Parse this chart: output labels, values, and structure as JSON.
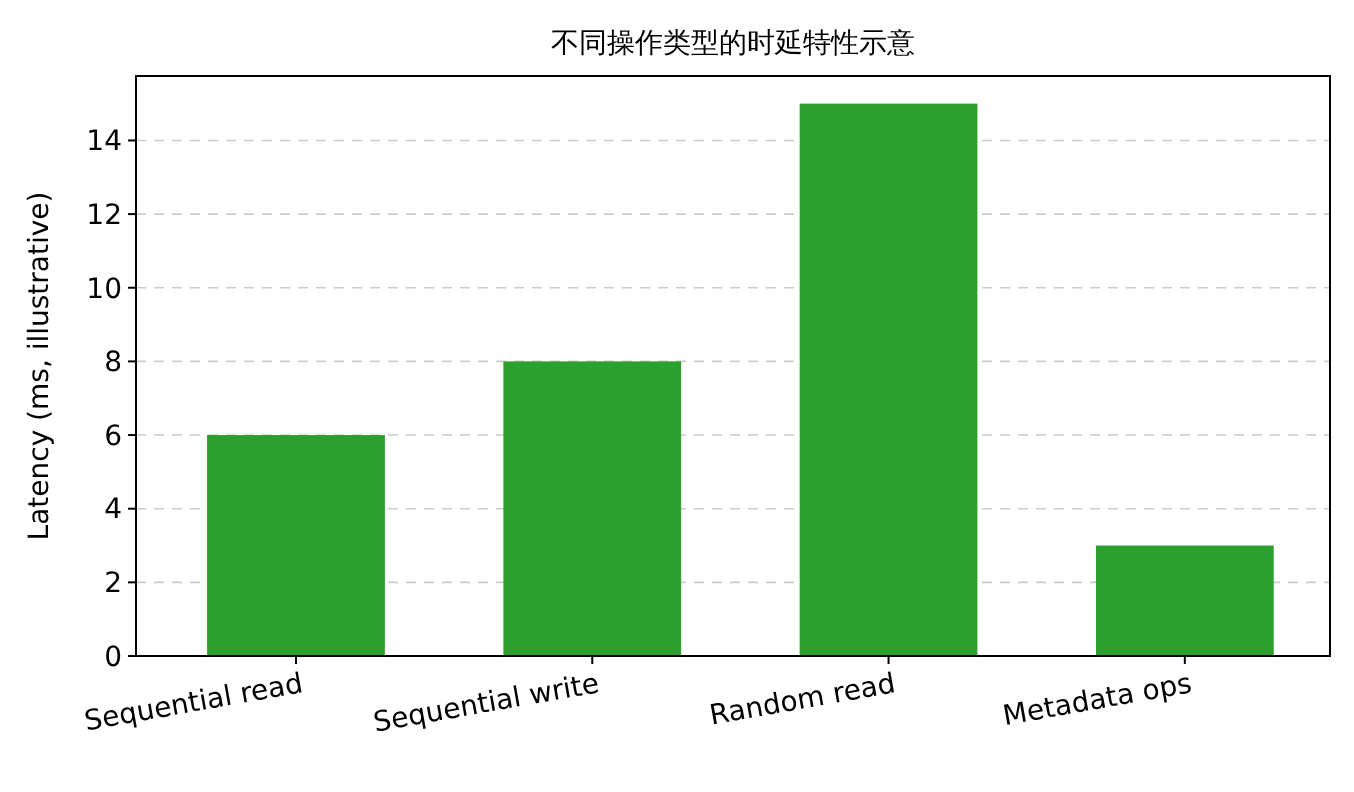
{
  "chart_data": {
    "type": "bar",
    "title": "不同操作类型的时延特性示意",
    "ylabel": "Latency (ms, illustrative)",
    "categories": [
      "Sequential read",
      "Sequential write",
      "Random read",
      "Metadata ops"
    ],
    "values": [
      6,
      8,
      15,
      3
    ],
    "color": "#2ca02c",
    "ylim": [
      0,
      15.75
    ],
    "yticks": [
      0,
      2,
      4,
      6,
      8,
      10,
      12,
      14
    ],
    "grid": "y"
  }
}
